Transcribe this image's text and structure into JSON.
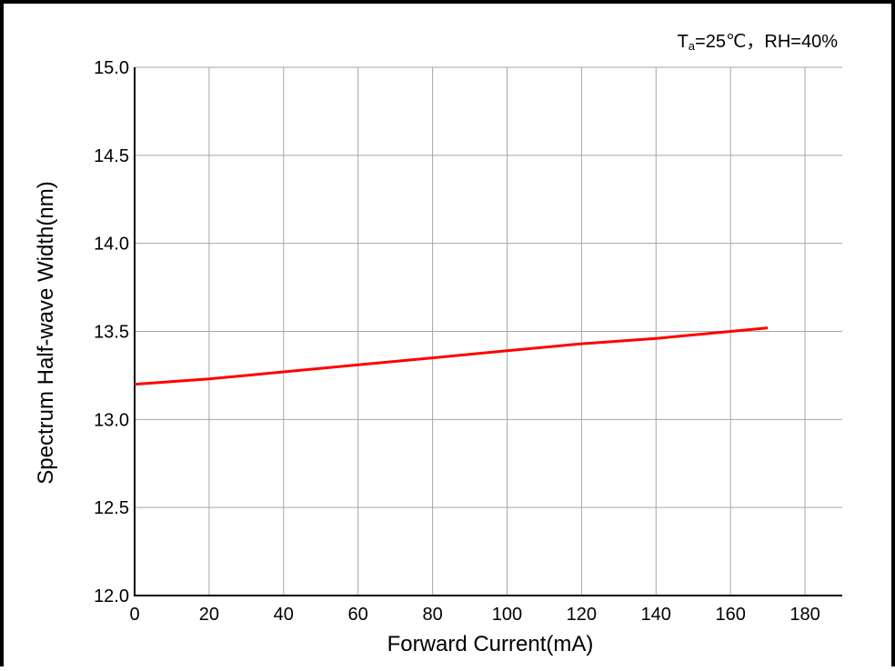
{
  "chart_data": {
    "type": "line",
    "conditions": {
      "prefix": "T",
      "subscript": "a",
      "rest": "=25℃，RH=40%"
    },
    "xlabel": "Forward Current(mA)",
    "ylabel": "Spectrum Half-wave Width(nm)",
    "xlim": [
      0,
      190
    ],
    "ylim": [
      12.0,
      15.0
    ],
    "xticks": [
      0,
      20,
      40,
      60,
      80,
      100,
      120,
      140,
      160,
      180
    ],
    "yticks": [
      "12.0",
      "12.5",
      "13.0",
      "13.5",
      "14.0",
      "14.5",
      "15.0"
    ],
    "grid": true,
    "series": [
      {
        "color": "#ff0000",
        "x": [
          0,
          20,
          40,
          60,
          80,
          100,
          120,
          140,
          160,
          170
        ],
        "y": [
          13.2,
          13.23,
          13.27,
          13.31,
          13.35,
          13.39,
          13.43,
          13.46,
          13.5,
          13.52
        ]
      }
    ]
  }
}
